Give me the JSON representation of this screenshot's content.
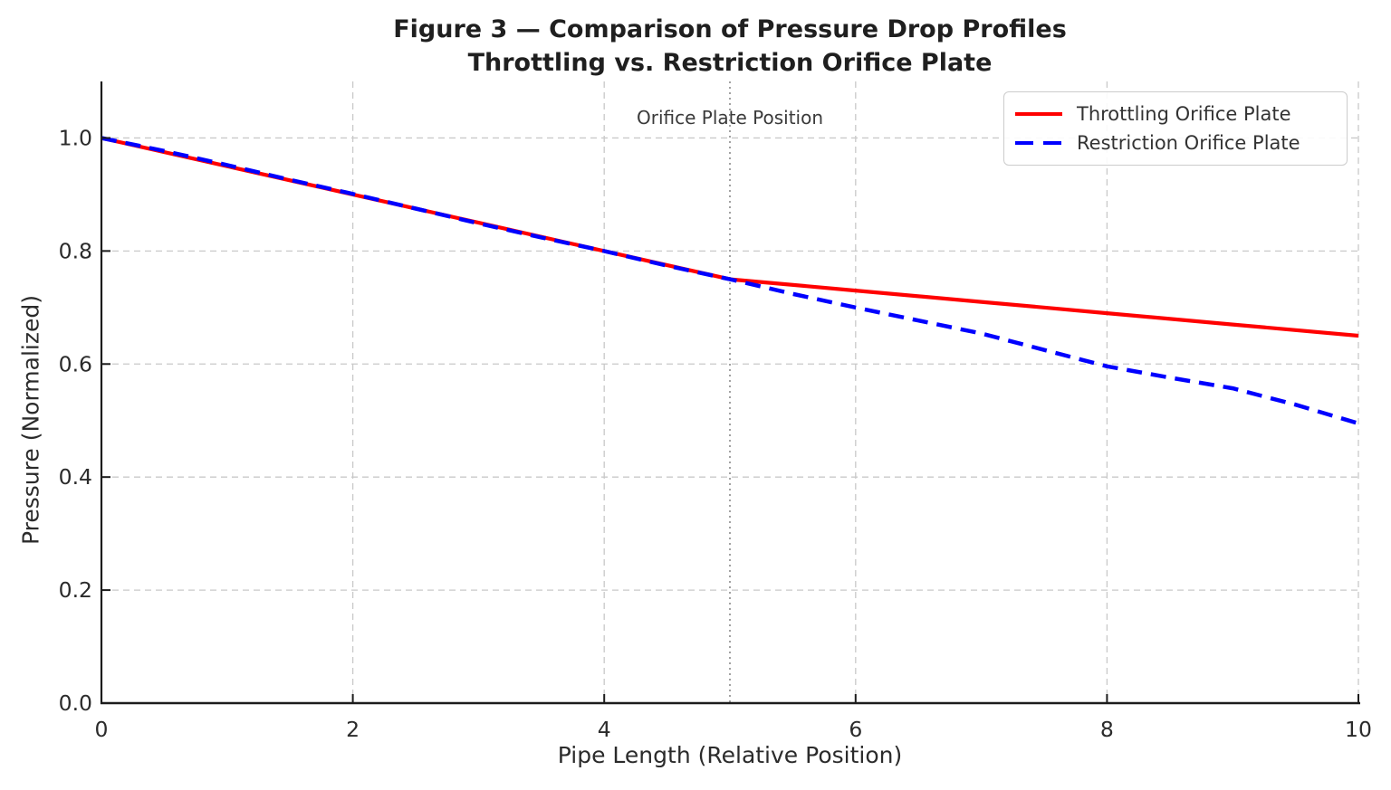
{
  "chart_data": {
    "type": "line",
    "title": "Figure 3 — Comparison of Pressure Drop Profiles",
    "subtitle": "Throttling vs. Restriction Orifice Plate",
    "xlabel": "Pipe Length (Relative Position)",
    "ylabel": "Pressure (Normalized)",
    "xlim": [
      0,
      10
    ],
    "ylim": [
      0,
      1.1
    ],
    "xticks": [
      0,
      2,
      4,
      6,
      8,
      10
    ],
    "xticklabels": [
      "0",
      "2",
      "4",
      "6",
      "8",
      "10"
    ],
    "yticks": [
      0.0,
      0.2,
      0.4,
      0.6,
      0.8,
      1.0
    ],
    "yticklabels": [
      "0.0",
      "0.2",
      "0.4",
      "0.6",
      "0.8",
      "1.0"
    ],
    "grid": true,
    "grid_style": "dashed",
    "legend_position": "upper right",
    "vline": {
      "x": 5,
      "label": "Orifice Plate Position",
      "style": "dotted",
      "color": "#8a8a8a"
    },
    "series": [
      {
        "name": "Throttling Orifice Plate",
        "color": "#ff0000",
        "style": "solid",
        "x": [
          0,
          1,
          2,
          3,
          4,
          5,
          6,
          7,
          8,
          9,
          10
        ],
        "y": [
          1.0,
          0.95,
          0.9,
          0.85,
          0.8,
          0.75,
          0.73,
          0.71,
          0.69,
          0.67,
          0.65
        ]
      },
      {
        "name": "Restriction Orifice Plate",
        "color": "#0000ff",
        "style": "dashed",
        "x": [
          0,
          0.5,
          1,
          1.5,
          2,
          2.5,
          3,
          3.5,
          4,
          4.5,
          5,
          5.5,
          6,
          6.5,
          7,
          7.5,
          8,
          8.5,
          9,
          9.5,
          10
        ],
        "y": [
          1.0,
          0.977,
          0.952,
          0.926,
          0.901,
          0.875,
          0.849,
          0.824,
          0.8,
          0.774,
          0.75,
          0.724,
          0.7,
          0.677,
          0.654,
          0.625,
          0.596,
          0.576,
          0.557,
          0.528,
          0.495
        ]
      }
    ]
  },
  "colors": {
    "throttling_line": "#ff0000",
    "restriction_line": "#0000ff",
    "grid": "#c9c9c9",
    "spine": "#1c1c1c",
    "tick_label": "#2b2b2b",
    "annotation_text": "#3a3a3a"
  }
}
